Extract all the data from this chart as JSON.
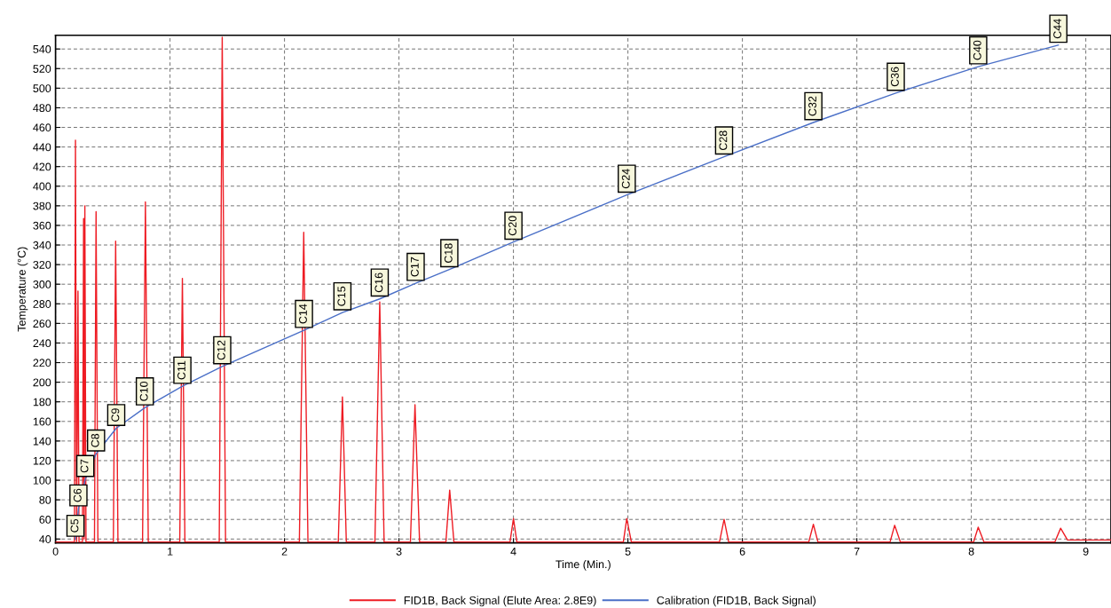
{
  "chart_data": {
    "type": "line",
    "xlabel": "Time (Min.)",
    "ylabel": "Temperature (°C)",
    "xlim": [
      0,
      9.22
    ],
    "xticks": [
      0,
      1,
      2,
      3,
      4,
      5,
      6,
      7,
      8,
      9
    ],
    "ylim": [
      36,
      554
    ],
    "yticks": [
      40,
      60,
      80,
      100,
      120,
      140,
      160,
      180,
      200,
      220,
      240,
      260,
      280,
      300,
      320,
      340,
      360,
      380,
      400,
      420,
      440,
      460,
      480,
      500,
      520,
      540
    ],
    "grid": true,
    "legend": "bottom",
    "line_style": "solid",
    "marker": "none",
    "series": [
      {
        "name": "FID1B, Back Signal (Elute Area: 2.8E9)",
        "color": "#ee1c24",
        "x": [
          0,
          0.165,
          0.174,
          0.184,
          0.196,
          0.205,
          0.235,
          0.245,
          0.25,
          0.256,
          0.266,
          0.34,
          0.354,
          0.37,
          0.505,
          0.525,
          0.545,
          0.76,
          0.785,
          0.81,
          1.085,
          1.108,
          1.13,
          1.43,
          1.456,
          1.485,
          2.13,
          2.168,
          2.205,
          2.47,
          2.506,
          2.54,
          2.79,
          2.832,
          2.87,
          3.1,
          3.14,
          3.18,
          3.41,
          3.443,
          3.48,
          3.97,
          4.0,
          4.03,
          4.96,
          4.99,
          5.03,
          5.8,
          5.84,
          5.88,
          6.58,
          6.62,
          6.66,
          7.29,
          7.33,
          7.38,
          8.02,
          8.06,
          8.11,
          8.73,
          8.78,
          8.84,
          9.22
        ],
        "values": [
          37,
          37,
          447,
          37,
          293,
          37,
          37,
          367,
          40,
          380,
          37,
          37,
          374,
          37,
          37,
          344,
          37,
          37,
          384,
          37,
          37,
          306,
          37,
          37,
          552,
          37,
          37,
          353,
          37,
          37,
          185,
          37,
          37,
          282,
          37,
          37,
          177,
          37,
          37,
          90,
          37,
          37,
          61,
          37,
          37,
          61,
          37,
          37,
          60,
          37,
          37,
          55,
          37,
          37,
          54,
          37,
          37,
          52,
          37,
          37,
          51,
          39,
          39
        ]
      },
      {
        "name": "Calibration (FID1B, Back Signal)",
        "color": "#4a6fc7",
        "x": [
          0.174,
          0.2,
          0.26,
          0.354,
          0.53,
          0.78,
          1.108,
          1.456,
          2.17,
          2.506,
          2.832,
          3.146,
          3.44,
          4.0,
          4.99,
          5.84,
          6.62,
          7.34,
          8.06,
          8.76
        ],
        "values": [
          40,
          71,
          101,
          127,
          153,
          174,
          196,
          216,
          253,
          271,
          285,
          301,
          315,
          343,
          391,
          430,
          465,
          495,
          522,
          544
        ]
      }
    ],
    "annotations": [
      {
        "text": "C5",
        "x": 0.174,
        "y": 40
      },
      {
        "text": "C6",
        "x": 0.2,
        "y": 71
      },
      {
        "text": "C7",
        "x": 0.26,
        "y": 101
      },
      {
        "text": "C8",
        "x": 0.354,
        "y": 127
      },
      {
        "text": "C9",
        "x": 0.53,
        "y": 153
      },
      {
        "text": "C10",
        "x": 0.78,
        "y": 174
      },
      {
        "text": "C11",
        "x": 1.108,
        "y": 196
      },
      {
        "text": "C12",
        "x": 1.456,
        "y": 216
      },
      {
        "text": "C14",
        "x": 2.17,
        "y": 253
      },
      {
        "text": "C15",
        "x": 2.506,
        "y": 271
      },
      {
        "text": "C16",
        "x": 2.832,
        "y": 285
      },
      {
        "text": "C17",
        "x": 3.146,
        "y": 301
      },
      {
        "text": "C18",
        "x": 3.44,
        "y": 315
      },
      {
        "text": "C20",
        "x": 4.0,
        "y": 343
      },
      {
        "text": "C24",
        "x": 4.99,
        "y": 391
      },
      {
        "text": "C28",
        "x": 5.84,
        "y": 430
      },
      {
        "text": "C32",
        "x": 6.62,
        "y": 465
      },
      {
        "text": "C36",
        "x": 7.34,
        "y": 495
      },
      {
        "text": "C40",
        "x": 8.06,
        "y": 522
      },
      {
        "text": "C44",
        "x": 8.76,
        "y": 544
      }
    ]
  }
}
